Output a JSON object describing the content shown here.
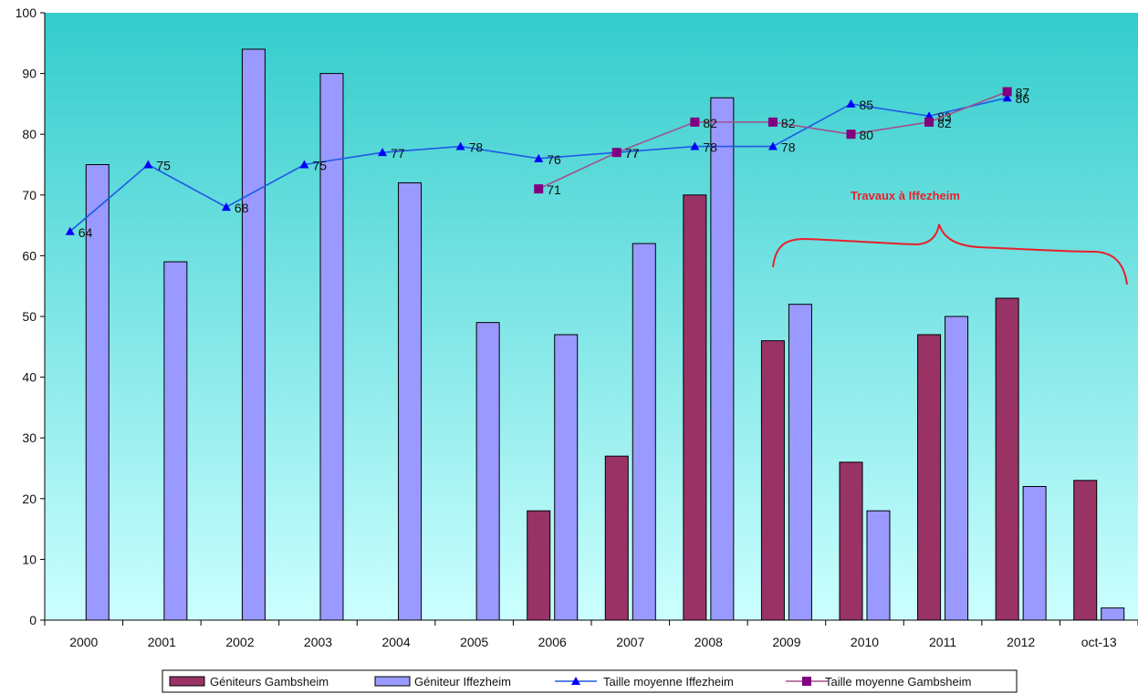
{
  "chart_data": {
    "type": "bar",
    "categories": [
      "2000",
      "2001",
      "2002",
      "2003",
      "2004",
      "2005",
      "2006",
      "2007",
      "2008",
      "2009",
      "2010",
      "2011",
      "2012",
      "oct-13"
    ],
    "ylim": [
      0,
      100
    ],
    "yticks": [
      0,
      10,
      20,
      30,
      40,
      50,
      60,
      70,
      80,
      90,
      100
    ],
    "grid": false,
    "legend_position": "bottom",
    "series": [
      {
        "name": "Géniteurs Gambsheim",
        "kind": "bar",
        "color": "#993366",
        "values": [
          null,
          null,
          null,
          null,
          null,
          null,
          18,
          27,
          70,
          46,
          26,
          47,
          53,
          23
        ]
      },
      {
        "name": "Géniteur Iffezheim",
        "kind": "bar",
        "color": "#9999ff",
        "values": [
          75,
          59,
          94,
          90,
          72,
          49,
          47,
          62,
          86,
          52,
          18,
          50,
          22,
          2
        ]
      },
      {
        "name": "Taille moyenne Iffezheim",
        "kind": "line",
        "marker": "triangle",
        "color": "#0000ff",
        "line_color": "#1e5ae6",
        "values": [
          64,
          75,
          68,
          75,
          77,
          78,
          76,
          77,
          78,
          78,
          85,
          83,
          86,
          null
        ]
      },
      {
        "name": "Taille moyenne Gambsheim",
        "kind": "line",
        "marker": "square",
        "color": "#800080",
        "line_color": "#a0508c",
        "values": [
          null,
          null,
          null,
          null,
          null,
          null,
          71,
          77,
          82,
          82,
          80,
          82,
          87,
          null
        ]
      }
    ],
    "annotation": {
      "text": "Travaux à Iffezheim",
      "color": "#e8202a",
      "brace_color": "#e8202a"
    },
    "background": {
      "top": "#33cccc",
      "bottom": "#ccffff"
    }
  }
}
